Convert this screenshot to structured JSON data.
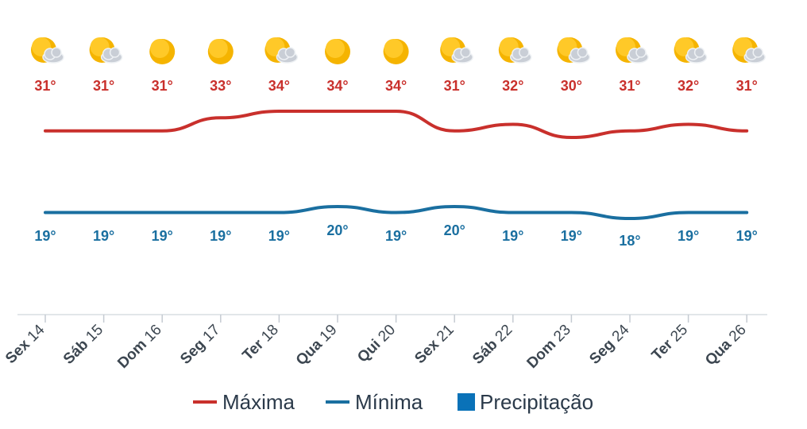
{
  "chart_data": {
    "type": "line",
    "categories": [
      {
        "weekday": "Sex",
        "day": "14"
      },
      {
        "weekday": "Sáb",
        "day": "15"
      },
      {
        "weekday": "Dom",
        "day": "16"
      },
      {
        "weekday": "Seg",
        "day": "17"
      },
      {
        "weekday": "Ter",
        "day": "18"
      },
      {
        "weekday": "Qua",
        "day": "19"
      },
      {
        "weekday": "Qui",
        "day": "20"
      },
      {
        "weekday": "Sex",
        "day": "21"
      },
      {
        "weekday": "Sáb",
        "day": "22"
      },
      {
        "weekday": "Dom",
        "day": "23"
      },
      {
        "weekday": "Seg",
        "day": "24"
      },
      {
        "weekday": "Ter",
        "day": "25"
      },
      {
        "weekday": "Qua",
        "day": "26"
      }
    ],
    "icons": [
      "partly-cloudy-icon",
      "partly-cloudy-icon",
      "sunny-icon",
      "sunny-icon",
      "partly-cloudy-icon",
      "sunny-icon",
      "sunny-icon",
      "partly-cloudy-icon",
      "partly-cloudy-icon",
      "partly-cloudy-icon",
      "partly-cloudy-icon",
      "partly-cloudy-icon",
      "partly-cloudy-icon"
    ],
    "series": [
      {
        "name": "Máxima",
        "color": "#c9302c",
        "values": [
          31,
          31,
          31,
          33,
          34,
          34,
          34,
          31,
          32,
          30,
          31,
          32,
          31
        ],
        "labels": [
          "31°",
          "31°",
          "31°",
          "33°",
          "34°",
          "34°",
          "34°",
          "31°",
          "32°",
          "30°",
          "31°",
          "32°",
          "31°"
        ]
      },
      {
        "name": "Mínima",
        "color": "#1a6fa0",
        "values": [
          19,
          19,
          19,
          19,
          19,
          20,
          19,
          20,
          19,
          19,
          18,
          19,
          19
        ],
        "labels": [
          "19°",
          "19°",
          "19°",
          "19°",
          "19°",
          "20°",
          "19°",
          "20°",
          "19°",
          "19°",
          "18°",
          "19°",
          "19°"
        ]
      }
    ],
    "legend": [
      {
        "label": "Máxima",
        "color": "#c9302c",
        "symbol": "line"
      },
      {
        "label": "Mínima",
        "color": "#1a6fa0",
        "symbol": "line"
      },
      {
        "label": "Precipitação",
        "color": "#0a72b8",
        "symbol": "square"
      }
    ],
    "legend_position": "bottom",
    "grid": false
  }
}
